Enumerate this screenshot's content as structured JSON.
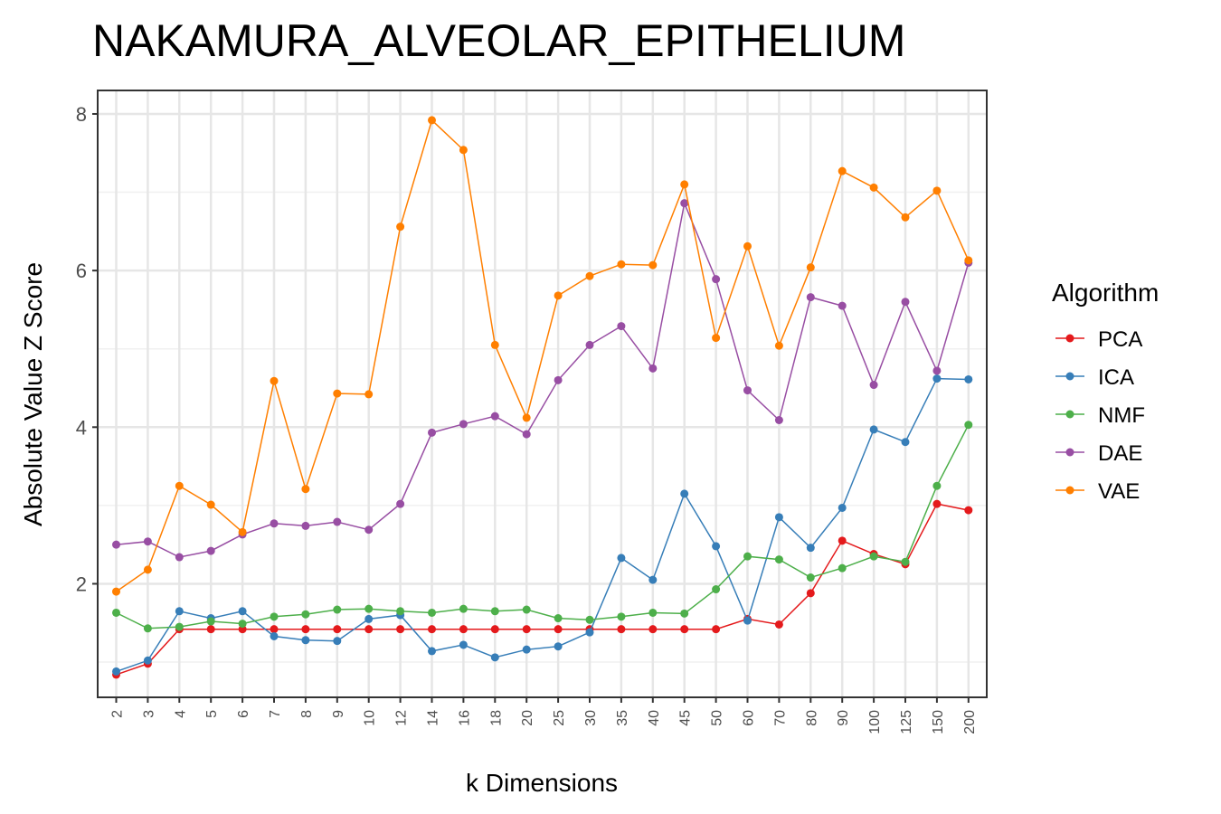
{
  "chart_data": {
    "type": "line",
    "title": "NAKAMURA_ALVEOLAR_EPITHELIUM",
    "xlabel": "k Dimensions",
    "ylabel": "Absolute Value Z Score",
    "categories": [
      "2",
      "3",
      "4",
      "5",
      "6",
      "7",
      "8",
      "9",
      "10",
      "12",
      "14",
      "16",
      "18",
      "20",
      "25",
      "30",
      "35",
      "40",
      "45",
      "50",
      "60",
      "70",
      "80",
      "90",
      "100",
      "125",
      "150",
      "200"
    ],
    "yticks": [
      "2",
      "4",
      "6",
      "8"
    ],
    "ylim": [
      0.55,
      8.3
    ],
    "grid": true,
    "legend": {
      "title": "Algorithm",
      "position": "right"
    },
    "series": [
      {
        "name": "PCA",
        "color": "#E41A1C",
        "values": [
          0.84,
          0.98,
          1.42,
          1.42,
          1.42,
          1.42,
          1.42,
          1.42,
          1.42,
          1.42,
          1.42,
          1.42,
          1.42,
          1.42,
          1.42,
          1.42,
          1.42,
          1.42,
          1.42,
          1.42,
          1.55,
          1.48,
          1.88,
          2.55,
          2.38,
          2.25,
          3.02,
          2.94
        ]
      },
      {
        "name": "ICA",
        "color": "#377EB8",
        "values": [
          0.88,
          1.02,
          1.65,
          1.56,
          1.65,
          1.33,
          1.28,
          1.27,
          1.55,
          1.6,
          1.14,
          1.22,
          1.06,
          1.16,
          1.2,
          1.38,
          2.33,
          2.05,
          3.15,
          2.48,
          1.53,
          2.85,
          2.46,
          2.97,
          3.97,
          3.81,
          4.62,
          4.61
        ]
      },
      {
        "name": "NMF",
        "color": "#4DAF4A",
        "values": [
          1.63,
          1.43,
          1.45,
          1.52,
          1.49,
          1.58,
          1.61,
          1.67,
          1.68,
          1.65,
          1.63,
          1.68,
          1.65,
          1.67,
          1.56,
          1.54,
          1.58,
          1.63,
          1.62,
          1.93,
          2.35,
          2.31,
          2.08,
          2.2,
          2.35,
          2.28,
          3.25,
          4.03
        ]
      },
      {
        "name": "DAE",
        "color": "#984EA3",
        "values": [
          2.5,
          2.54,
          2.34,
          2.42,
          2.63,
          2.77,
          2.74,
          2.79,
          2.69,
          3.02,
          3.93,
          4.04,
          4.14,
          3.91,
          4.6,
          5.05,
          5.29,
          4.75,
          6.86,
          5.89,
          4.47,
          4.09,
          5.66,
          5.55,
          4.54,
          5.6,
          4.72,
          6.1
        ]
      },
      {
        "name": "VAE",
        "color": "#FF7F00",
        "values": [
          1.9,
          2.18,
          3.25,
          3.01,
          2.66,
          4.59,
          3.21,
          4.43,
          4.42,
          6.56,
          7.92,
          7.54,
          5.05,
          4.12,
          5.68,
          5.93,
          6.08,
          6.07,
          7.1,
          5.14,
          6.31,
          5.04,
          6.04,
          7.27,
          7.06,
          6.68,
          7.02,
          6.13
        ]
      }
    ]
  }
}
